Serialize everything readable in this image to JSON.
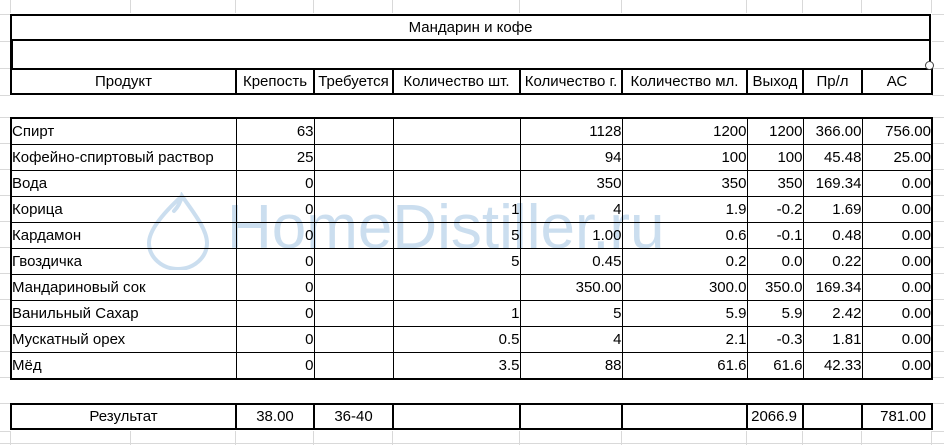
{
  "app": {
    "watermark_text": "HomeDistiller.ru",
    "watermark_icon": "water-drop-icon"
  },
  "colors": {
    "table_border": "#000000",
    "gridline": "#d9d9d9",
    "watermark": "#cbdeef"
  },
  "sheet": {
    "title": "Мандарин и кофе",
    "headers": [
      "Продукт",
      "Крепость",
      "Требуется",
      "Количество шт.",
      "Количество г.",
      "Количество мл.",
      "Выход",
      "Пр/л",
      "АС"
    ],
    "rows": [
      [
        "Спирт",
        "63",
        "",
        "",
        "1128",
        "1200",
        "1200",
        "366.00",
        "756.00"
      ],
      [
        "Кофейно-спиртовый раствор",
        "25",
        "",
        "",
        "94",
        "100",
        "100",
        "45.48",
        "25.00"
      ],
      [
        "Вода",
        "0",
        "",
        "",
        "350",
        "350",
        "350",
        "169.34",
        "0.00"
      ],
      [
        "Корица",
        "0",
        "",
        "1",
        "4",
        "1.9",
        "-0.2",
        "1.69",
        "0.00"
      ],
      [
        "Кардамон",
        "0",
        "",
        "5",
        "1.00",
        "0.6",
        "-0.1",
        "0.48",
        "0.00"
      ],
      [
        "Гвоздичка",
        "0",
        "",
        "5",
        "0.45",
        "0.2",
        "0.0",
        "0.22",
        "0.00"
      ],
      [
        "Мандариновый сок",
        "0",
        "",
        "",
        "350.00",
        "300.0",
        "350.0",
        "169.34",
        "0.00"
      ],
      [
        "Ванильный Сахар",
        "0",
        "",
        "1",
        "5",
        "5.9",
        "5.9",
        "2.42",
        "0.00"
      ],
      [
        "Мускатный орех",
        "0",
        "",
        "0.5",
        "4",
        "2.1",
        "-0.3",
        "1.81",
        "0.00"
      ],
      [
        "Мёд",
        "0",
        "",
        "3.5",
        "88",
        "61.6",
        "61.6",
        "42.33",
        "0.00"
      ]
    ],
    "result": [
      "Результат",
      "38.00",
      "36-40",
      "",
      "",
      "",
      "2066.9",
      "",
      "781.00"
    ]
  }
}
